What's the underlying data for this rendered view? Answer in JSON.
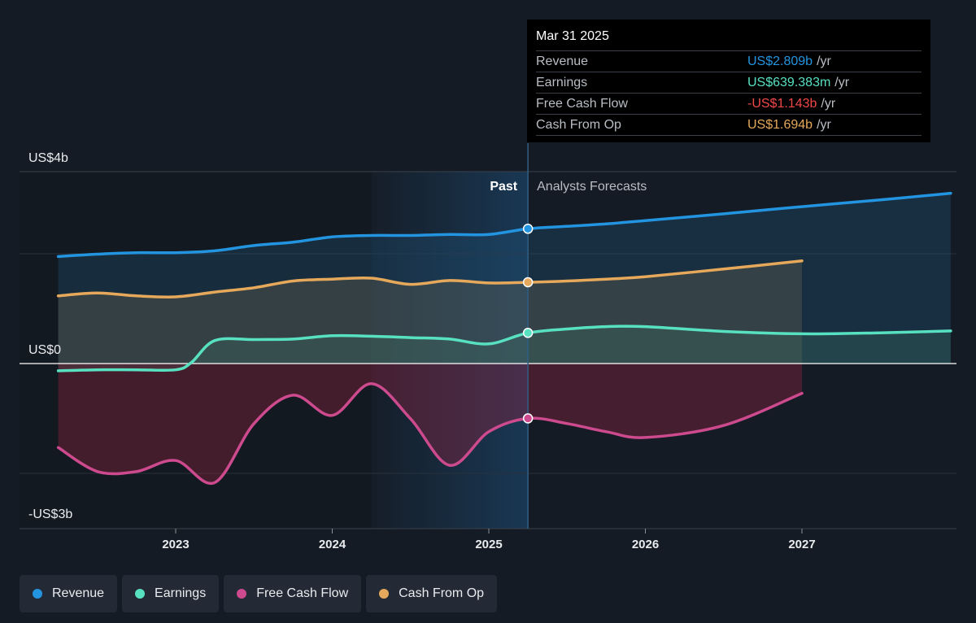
{
  "chart_data": {
    "type": "line",
    "ylim": [
      -3.25,
      4
    ],
    "y_ticks": [
      {
        "value": 4,
        "label": "US$4b"
      },
      {
        "value": 0,
        "label": "US$0"
      },
      {
        "value": -3,
        "label": "-US$3b"
      }
    ],
    "x_ticks": [
      "2023",
      "2024",
      "2025",
      "2026",
      "2027"
    ],
    "regions": {
      "past": "Past",
      "forecast": "Analysts Forecasts"
    },
    "series": [
      {
        "key": "revenue",
        "name": "Revenue",
        "color": "#2394df",
        "points": [
          [
            2022.25,
            2.23
          ],
          [
            2022.5,
            2.28
          ],
          [
            2022.75,
            2.31
          ],
          [
            2023.0,
            2.31
          ],
          [
            2023.25,
            2.35
          ],
          [
            2023.5,
            2.46
          ],
          [
            2023.75,
            2.53
          ],
          [
            2024.0,
            2.64
          ],
          [
            2024.25,
            2.67
          ],
          [
            2024.5,
            2.67
          ],
          [
            2024.75,
            2.69
          ],
          [
            2025.0,
            2.69
          ],
          [
            2025.25,
            2.809
          ],
          [
            2025.5,
            2.86
          ],
          [
            2025.75,
            2.91
          ],
          [
            2026.0,
            2.98
          ],
          [
            2026.5,
            3.12
          ],
          [
            2027.0,
            3.27
          ],
          [
            2027.5,
            3.41
          ],
          [
            2027.95,
            3.55
          ]
        ]
      },
      {
        "key": "earnings",
        "name": "Earnings",
        "color": "#58e1c1",
        "points": [
          [
            2022.25,
            -0.15
          ],
          [
            2022.5,
            -0.13
          ],
          [
            2022.75,
            -0.13
          ],
          [
            2023.0,
            -0.13
          ],
          [
            2023.1,
            0.02
          ],
          [
            2023.25,
            0.48
          ],
          [
            2023.5,
            0.5
          ],
          [
            2023.75,
            0.51
          ],
          [
            2024.0,
            0.58
          ],
          [
            2024.25,
            0.57
          ],
          [
            2024.5,
            0.54
          ],
          [
            2024.75,
            0.51
          ],
          [
            2025.0,
            0.41
          ],
          [
            2025.25,
            0.639
          ],
          [
            2025.5,
            0.72
          ],
          [
            2025.75,
            0.77
          ],
          [
            2026.0,
            0.77
          ],
          [
            2026.5,
            0.67
          ],
          [
            2027.0,
            0.62
          ],
          [
            2027.5,
            0.64
          ],
          [
            2027.95,
            0.68
          ]
        ]
      },
      {
        "key": "fcf",
        "name": "Free Cash Flow",
        "color": "#cc4a8d",
        "points": [
          [
            2022.25,
            -1.75
          ],
          [
            2022.5,
            -2.25
          ],
          [
            2022.75,
            -2.25
          ],
          [
            2023.0,
            -2.02
          ],
          [
            2023.25,
            -2.48
          ],
          [
            2023.5,
            -1.25
          ],
          [
            2023.75,
            -0.66
          ],
          [
            2024.0,
            -1.08
          ],
          [
            2024.25,
            -0.42
          ],
          [
            2024.5,
            -1.15
          ],
          [
            2024.75,
            -2.12
          ],
          [
            2025.0,
            -1.42
          ],
          [
            2025.25,
            -1.143
          ],
          [
            2025.5,
            -1.25
          ],
          [
            2025.75,
            -1.42
          ],
          [
            2026.0,
            -1.54
          ],
          [
            2026.5,
            -1.29
          ],
          [
            2027.0,
            -0.62
          ]
        ]
      },
      {
        "key": "cfo",
        "name": "Cash From Op",
        "color": "#e6a85a",
        "points": [
          [
            2022.25,
            1.41
          ],
          [
            2022.5,
            1.47
          ],
          [
            2022.75,
            1.41
          ],
          [
            2023.0,
            1.39
          ],
          [
            2023.25,
            1.49
          ],
          [
            2023.5,
            1.58
          ],
          [
            2023.75,
            1.72
          ],
          [
            2024.0,
            1.76
          ],
          [
            2024.25,
            1.78
          ],
          [
            2024.5,
            1.65
          ],
          [
            2024.75,
            1.73
          ],
          [
            2025.0,
            1.68
          ],
          [
            2025.25,
            1.694
          ],
          [
            2025.5,
            1.72
          ],
          [
            2025.75,
            1.76
          ],
          [
            2026.0,
            1.81
          ],
          [
            2026.5,
            1.97
          ],
          [
            2027.0,
            2.14
          ]
        ]
      }
    ]
  },
  "tooltip": {
    "date": "Mar 31 2025",
    "rows": [
      {
        "label": "Revenue",
        "value": "US$2.809b",
        "unit": "/yr",
        "color": "#2394df"
      },
      {
        "label": "Earnings",
        "value": "US$639.383m",
        "unit": "/yr",
        "color": "#58e1c1"
      },
      {
        "label": "Free Cash Flow",
        "value": "-US$1.143b",
        "unit": "/yr",
        "color": "#f04848"
      },
      {
        "label": "Cash From Op",
        "value": "US$1.694b",
        "unit": "/yr",
        "color": "#e6a85a"
      }
    ]
  },
  "legend": [
    {
      "label": "Revenue",
      "color": "#2394df"
    },
    {
      "label": "Earnings",
      "color": "#58e1c1"
    },
    {
      "label": "Free Cash Flow",
      "color": "#cc4a8d"
    },
    {
      "label": "Cash From Op",
      "color": "#e6a85a"
    }
  ]
}
